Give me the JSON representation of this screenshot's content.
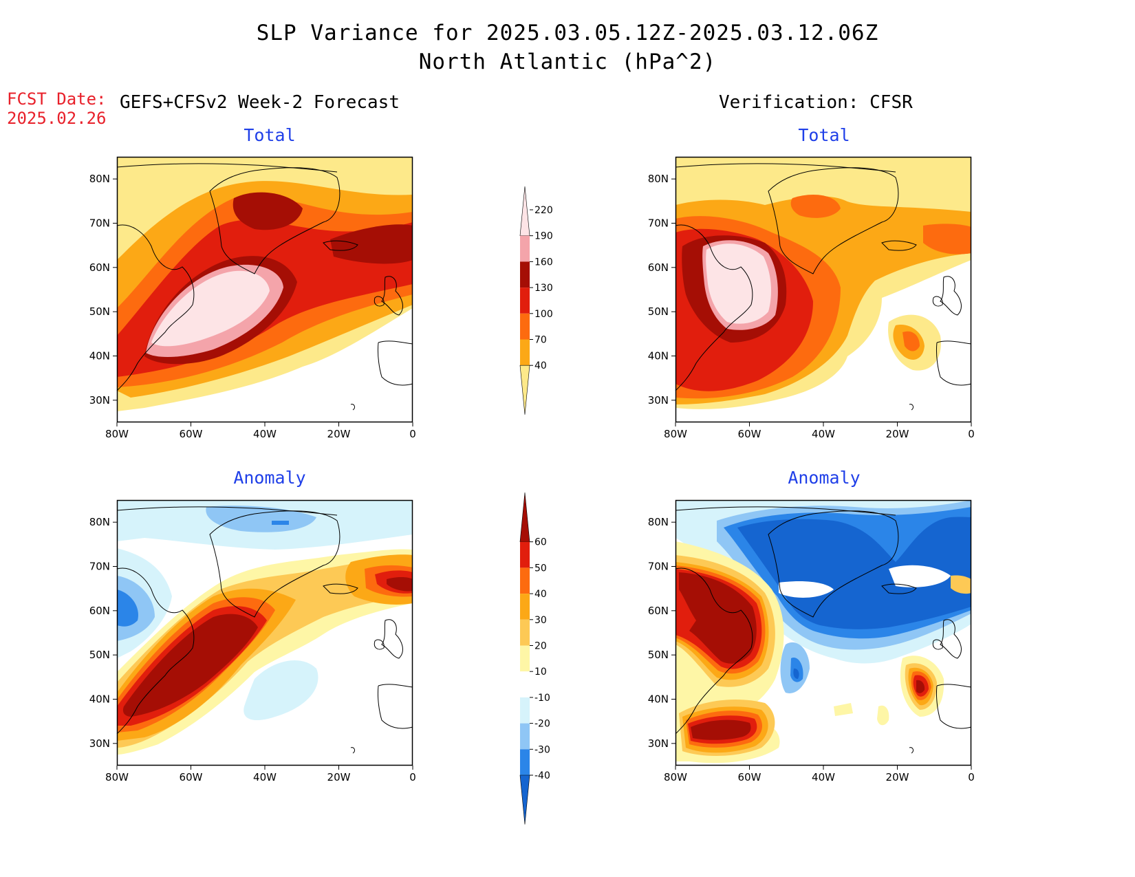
{
  "header": {
    "title": "SLP Variance for 2025.03.05.12Z-2025.03.12.06Z",
    "subtitle": "North Atlantic (hPa^2)"
  },
  "fcst": {
    "line1": "FCST Date:",
    "line2": "2025.02.26"
  },
  "columns": {
    "left": "GEFS+CFSv2 Week-2 Forecast",
    "right": "Verification: CFSR"
  },
  "panels": {
    "fc_total": {
      "title": "Total"
    },
    "ver_total": {
      "title": "Total"
    },
    "fc_anom": {
      "title": "Anomaly"
    },
    "ver_anom": {
      "title": "Anomaly"
    }
  },
  "axes": {
    "lat_labels": [
      "80N",
      "70N",
      "60N",
      "50N",
      "40N",
      "30N"
    ],
    "lat_values": [
      80,
      70,
      60,
      50,
      40,
      30
    ],
    "lon_labels": [
      "80W",
      "60W",
      "40W",
      "20W",
      "0"
    ],
    "lon_values": [
      -80,
      -60,
      -40,
      -20,
      0
    ],
    "lat_range": [
      25,
      85
    ],
    "lon_range": [
      -80,
      0
    ]
  },
  "colorbars": {
    "total": {
      "levels": [
        "40",
        "70",
        "100",
        "130",
        "160",
        "190",
        "220"
      ],
      "colors": [
        "#fde98a",
        "#fca816",
        "#fd6b0f",
        "#e11e0d",
        "#a50e05",
        "#f4a4aa",
        "#fde4e6"
      ]
    },
    "anomaly": {
      "levels": [
        "-40",
        "-30",
        "-20",
        "-10",
        "10",
        "20",
        "30",
        "40",
        "50",
        "60"
      ],
      "colors": [
        "#1565d0",
        "#2b85e8",
        "#8fc6f5",
        "#d6f3fb",
        "#ffffff",
        "#fef6a6",
        "#fdc955",
        "#fca816",
        "#fd6b0f",
        "#e11e0d",
        "#a50e05"
      ]
    }
  },
  "palette": {
    "white": "#ffffff",
    "y": "#fde98a",
    "o1": "#fca816",
    "o2": "#fd6b0f",
    "r1": "#e11e0d",
    "r2": "#a50e05",
    "p1": "#f4a4aa",
    "p2": "#fde4e6",
    "ay": "#fef6a6",
    "ao": "#fdc955",
    "b1": "#d6f3fb",
    "b2": "#8fc6f5",
    "b3": "#2b85e8",
    "b4": "#1565d0",
    "title_blue": "#1f3fe8",
    "fcst_red": "#e8202a"
  }
}
